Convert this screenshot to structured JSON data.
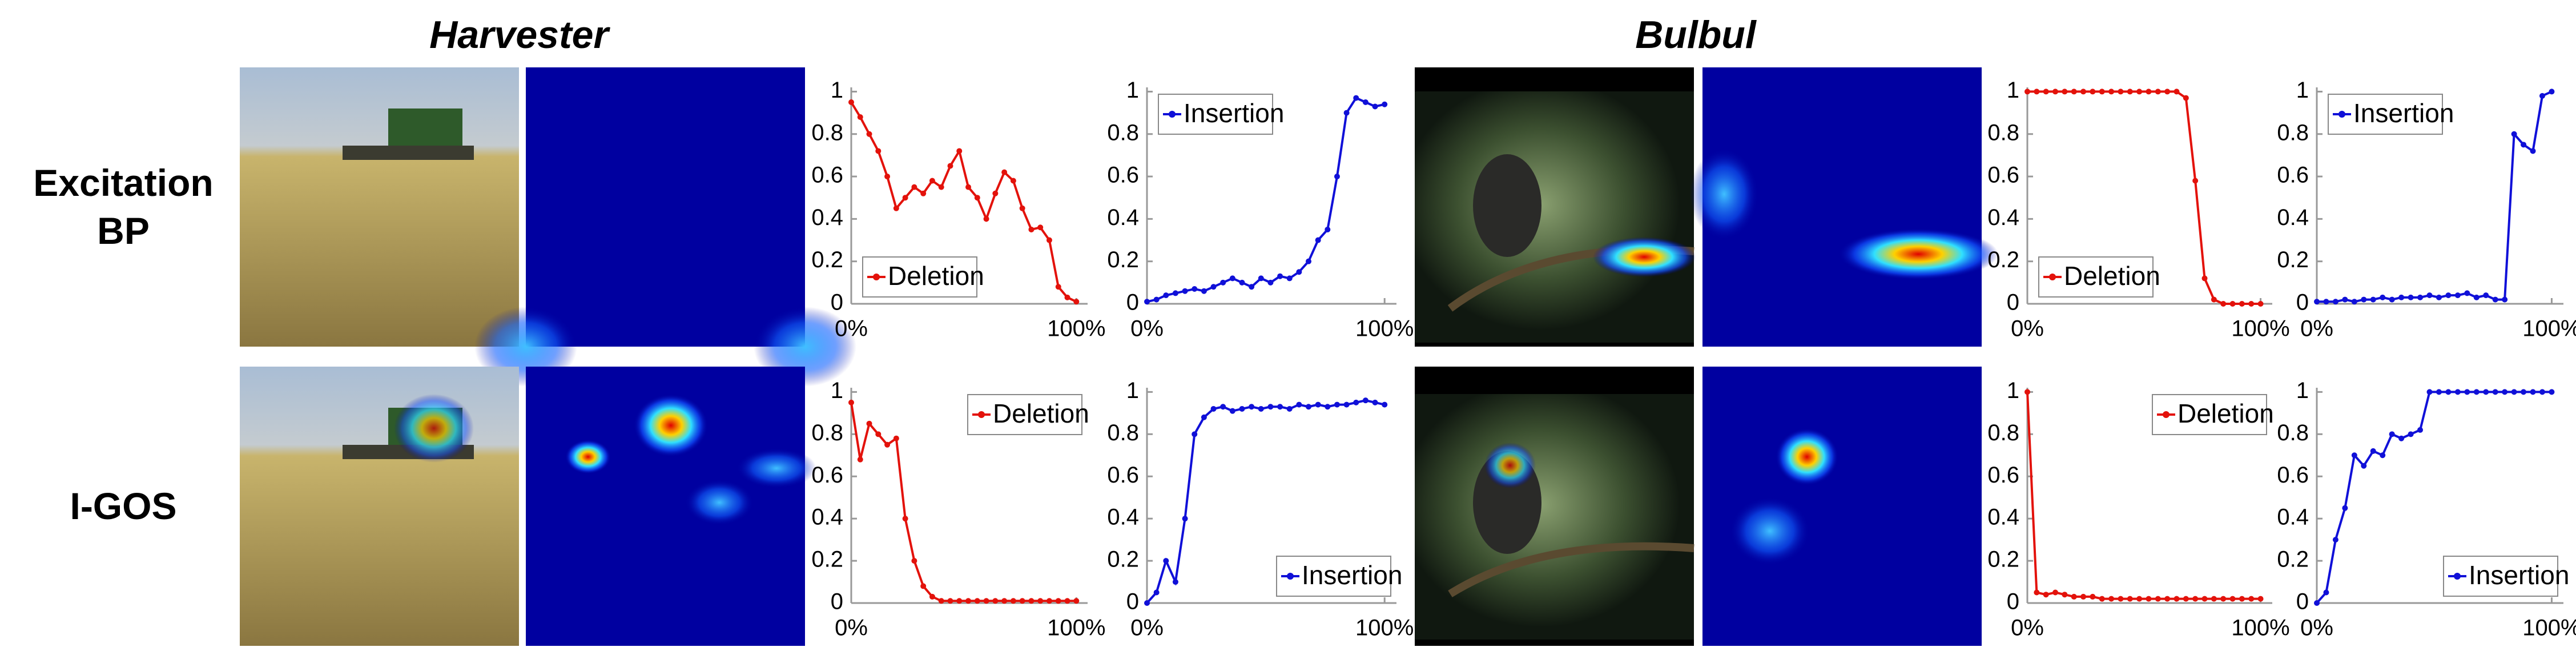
{
  "columns": [
    "Harvester",
    "Bulbul"
  ],
  "rows": [
    "Excitation BP",
    "I-GOS"
  ],
  "chart_data": [
    {
      "type": "line",
      "x": [
        0,
        4,
        8,
        12,
        16,
        20,
        24,
        28,
        32,
        36,
        40,
        44,
        48,
        52,
        56,
        60,
        64,
        68,
        72,
        76,
        80,
        84,
        88,
        92,
        96,
        100
      ],
      "series": [
        {
          "name": "Deletion",
          "color": "#e3120b",
          "values": [
            0.95,
            0.88,
            0.8,
            0.72,
            0.6,
            0.45,
            0.5,
            0.55,
            0.52,
            0.58,
            0.55,
            0.65,
            0.72,
            0.55,
            0.5,
            0.4,
            0.52,
            0.62,
            0.58,
            0.45,
            0.35,
            0.36,
            0.3,
            0.08,
            0.03,
            0.01
          ]
        }
      ],
      "xlim": [
        0,
        105
      ],
      "ylim": [
        0,
        1.02
      ],
      "xticks": [
        {
          "value": 0,
          "label": "0%"
        },
        {
          "value": 100,
          "label": "100%"
        }
      ],
      "yticks": [
        0,
        0.2,
        0.4,
        0.6,
        0.8,
        1
      ],
      "legend": "bottom-left"
    },
    {
      "type": "line",
      "x": [
        0,
        4,
        8,
        12,
        16,
        20,
        24,
        28,
        32,
        36,
        40,
        44,
        48,
        52,
        56,
        60,
        64,
        68,
        72,
        76,
        80,
        84,
        88,
        92,
        96,
        100
      ],
      "series": [
        {
          "name": "Insertion",
          "color": "#1010d8",
          "values": [
            0.01,
            0.02,
            0.04,
            0.05,
            0.06,
            0.07,
            0.06,
            0.08,
            0.1,
            0.12,
            0.1,
            0.08,
            0.12,
            0.1,
            0.13,
            0.12,
            0.15,
            0.2,
            0.3,
            0.35,
            0.6,
            0.9,
            0.97,
            0.95,
            0.93,
            0.94
          ]
        }
      ],
      "xlim": [
        0,
        105
      ],
      "ylim": [
        0,
        1.02
      ],
      "xticks": [
        {
          "value": 0,
          "label": "0%"
        },
        {
          "value": 100,
          "label": "100%"
        }
      ],
      "yticks": [
        0,
        0.2,
        0.4,
        0.6,
        0.8,
        1
      ],
      "legend": "top-left"
    },
    {
      "type": "line",
      "x": [
        0,
        4,
        8,
        12,
        16,
        20,
        24,
        28,
        32,
        36,
        40,
        44,
        48,
        52,
        56,
        60,
        64,
        68,
        72,
        76,
        80,
        84,
        88,
        92,
        96,
        100
      ],
      "series": [
        {
          "name": "Deletion",
          "color": "#e3120b",
          "values": [
            1,
            1,
            1,
            1,
            1,
            1,
            1,
            1,
            1,
            1,
            1,
            1,
            1,
            1,
            1,
            1,
            1,
            0.97,
            0.58,
            0.12,
            0.02,
            0,
            0,
            0,
            0,
            0
          ]
        }
      ],
      "xlim": [
        0,
        105
      ],
      "ylim": [
        0,
        1.02
      ],
      "xticks": [
        {
          "value": 0,
          "label": "0%"
        },
        {
          "value": 100,
          "label": "100%"
        }
      ],
      "yticks": [
        0,
        0.2,
        0.4,
        0.6,
        0.8,
        1
      ],
      "legend": "bottom-left"
    },
    {
      "type": "line",
      "x": [
        0,
        4,
        8,
        12,
        16,
        20,
        24,
        28,
        32,
        36,
        40,
        44,
        48,
        52,
        56,
        60,
        64,
        68,
        72,
        76,
        80,
        84,
        88,
        92,
        96,
        100
      ],
      "series": [
        {
          "name": "Insertion",
          "color": "#1010d8",
          "values": [
            0.01,
            0.01,
            0.01,
            0.02,
            0.01,
            0.02,
            0.02,
            0.03,
            0.02,
            0.03,
            0.03,
            0.03,
            0.04,
            0.03,
            0.04,
            0.04,
            0.05,
            0.03,
            0.04,
            0.02,
            0.02,
            0.8,
            0.75,
            0.72,
            0.98,
            1
          ]
        }
      ],
      "xlim": [
        0,
        105
      ],
      "ylim": [
        0,
        1.02
      ],
      "xticks": [
        {
          "value": 0,
          "label": "0%"
        },
        {
          "value": 100,
          "label": "100%"
        }
      ],
      "yticks": [
        0,
        0.2,
        0.4,
        0.6,
        0.8,
        1
      ],
      "legend": "top-left"
    },
    {
      "type": "line",
      "x": [
        0,
        4,
        8,
        12,
        16,
        20,
        24,
        28,
        32,
        36,
        40,
        44,
        48,
        52,
        56,
        60,
        64,
        68,
        72,
        76,
        80,
        84,
        88,
        92,
        96,
        100
      ],
      "series": [
        {
          "name": "Deletion",
          "color": "#e3120b",
          "values": [
            0.95,
            0.68,
            0.85,
            0.8,
            0.75,
            0.78,
            0.4,
            0.2,
            0.08,
            0.03,
            0.01,
            0.01,
            0.01,
            0.01,
            0.01,
            0.01,
            0.01,
            0.01,
            0.01,
            0.01,
            0.01,
            0.01,
            0.01,
            0.01,
            0.01,
            0.01
          ]
        }
      ],
      "xlim": [
        0,
        105
      ],
      "ylim": [
        0,
        1.02
      ],
      "xticks": [
        {
          "value": 0,
          "label": "0%"
        },
        {
          "value": 100,
          "label": "100%"
        }
      ],
      "yticks": [
        0,
        0.2,
        0.4,
        0.6,
        0.8,
        1
      ],
      "legend": "top-right"
    },
    {
      "type": "line",
      "x": [
        0,
        4,
        8,
        12,
        16,
        20,
        24,
        28,
        32,
        36,
        40,
        44,
        48,
        52,
        56,
        60,
        64,
        68,
        72,
        76,
        80,
        84,
        88,
        92,
        96,
        100
      ],
      "series": [
        {
          "name": "Insertion",
          "color": "#1010d8",
          "values": [
            0,
            0.05,
            0.2,
            0.1,
            0.4,
            0.8,
            0.88,
            0.92,
            0.93,
            0.91,
            0.92,
            0.93,
            0.92,
            0.93,
            0.93,
            0.92,
            0.94,
            0.93,
            0.94,
            0.93,
            0.94,
            0.94,
            0.95,
            0.96,
            0.95,
            0.94
          ]
        }
      ],
      "xlim": [
        0,
        105
      ],
      "ylim": [
        0,
        1.02
      ],
      "xticks": [
        {
          "value": 0,
          "label": "0%"
        },
        {
          "value": 100,
          "label": "100%"
        }
      ],
      "yticks": [
        0,
        0.2,
        0.4,
        0.6,
        0.8,
        1
      ],
      "legend": "bottom-right"
    },
    {
      "type": "line",
      "x": [
        0,
        4,
        8,
        12,
        16,
        20,
        24,
        28,
        32,
        36,
        40,
        44,
        48,
        52,
        56,
        60,
        64,
        68,
        72,
        76,
        80,
        84,
        88,
        92,
        96,
        100
      ],
      "series": [
        {
          "name": "Deletion",
          "color": "#e3120b",
          "values": [
            1,
            0.05,
            0.04,
            0.05,
            0.04,
            0.03,
            0.03,
            0.03,
            0.02,
            0.02,
            0.02,
            0.02,
            0.02,
            0.02,
            0.02,
            0.02,
            0.02,
            0.02,
            0.02,
            0.02,
            0.02,
            0.02,
            0.02,
            0.02,
            0.02,
            0.02
          ]
        }
      ],
      "xlim": [
        0,
        105
      ],
      "ylim": [
        0,
        1.02
      ],
      "xticks": [
        {
          "value": 0,
          "label": "0%"
        },
        {
          "value": 100,
          "label": "100%"
        }
      ],
      "yticks": [
        0,
        0.2,
        0.4,
        0.6,
        0.8,
        1
      ],
      "legend": "top-right"
    },
    {
      "type": "line",
      "x": [
        0,
        4,
        8,
        12,
        16,
        20,
        24,
        28,
        32,
        36,
        40,
        44,
        48,
        52,
        56,
        60,
        64,
        68,
        72,
        76,
        80,
        84,
        88,
        92,
        96,
        100
      ],
      "series": [
        {
          "name": "Insertion",
          "color": "#1010d8",
          "values": [
            0,
            0.05,
            0.3,
            0.45,
            0.7,
            0.65,
            0.72,
            0.7,
            0.8,
            0.78,
            0.8,
            0.82,
            1,
            1,
            1,
            1,
            1,
            1,
            1,
            1,
            1,
            1,
            1,
            1,
            1,
            1
          ]
        }
      ],
      "xlim": [
        0,
        105
      ],
      "ylim": [
        0,
        1.02
      ],
      "xticks": [
        {
          "value": 0,
          "label": "0%"
        },
        {
          "value": 100,
          "label": "100%"
        }
      ],
      "yticks": [
        0,
        0.2,
        0.4,
        0.6,
        0.8,
        1
      ],
      "legend": "bottom-right"
    }
  ]
}
